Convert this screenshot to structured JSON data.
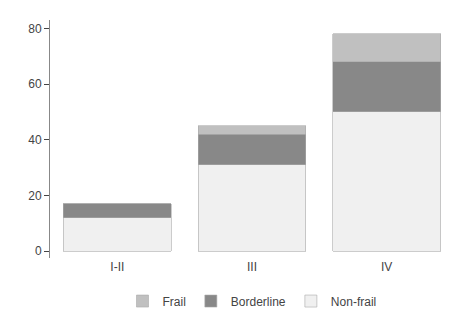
{
  "chart_data": {
    "type": "bar",
    "categories": [
      "I-II",
      "III",
      "IV"
    ],
    "series": [
      {
        "name": "Non-frail",
        "color": "#f0f0f0",
        "values": [
          12,
          31,
          50
        ]
      },
      {
        "name": "Borderline",
        "color": "#888888",
        "values": [
          5,
          11,
          18
        ]
      },
      {
        "name": "Frail",
        "color": "#c0c0c0",
        "values": [
          0,
          3,
          10
        ]
      }
    ],
    "stacked": true,
    "ylim": [
      -2.5,
      83
    ],
    "yticks": [
      0,
      20,
      40,
      60,
      80
    ],
    "grid": false,
    "legend": "bottom"
  }
}
